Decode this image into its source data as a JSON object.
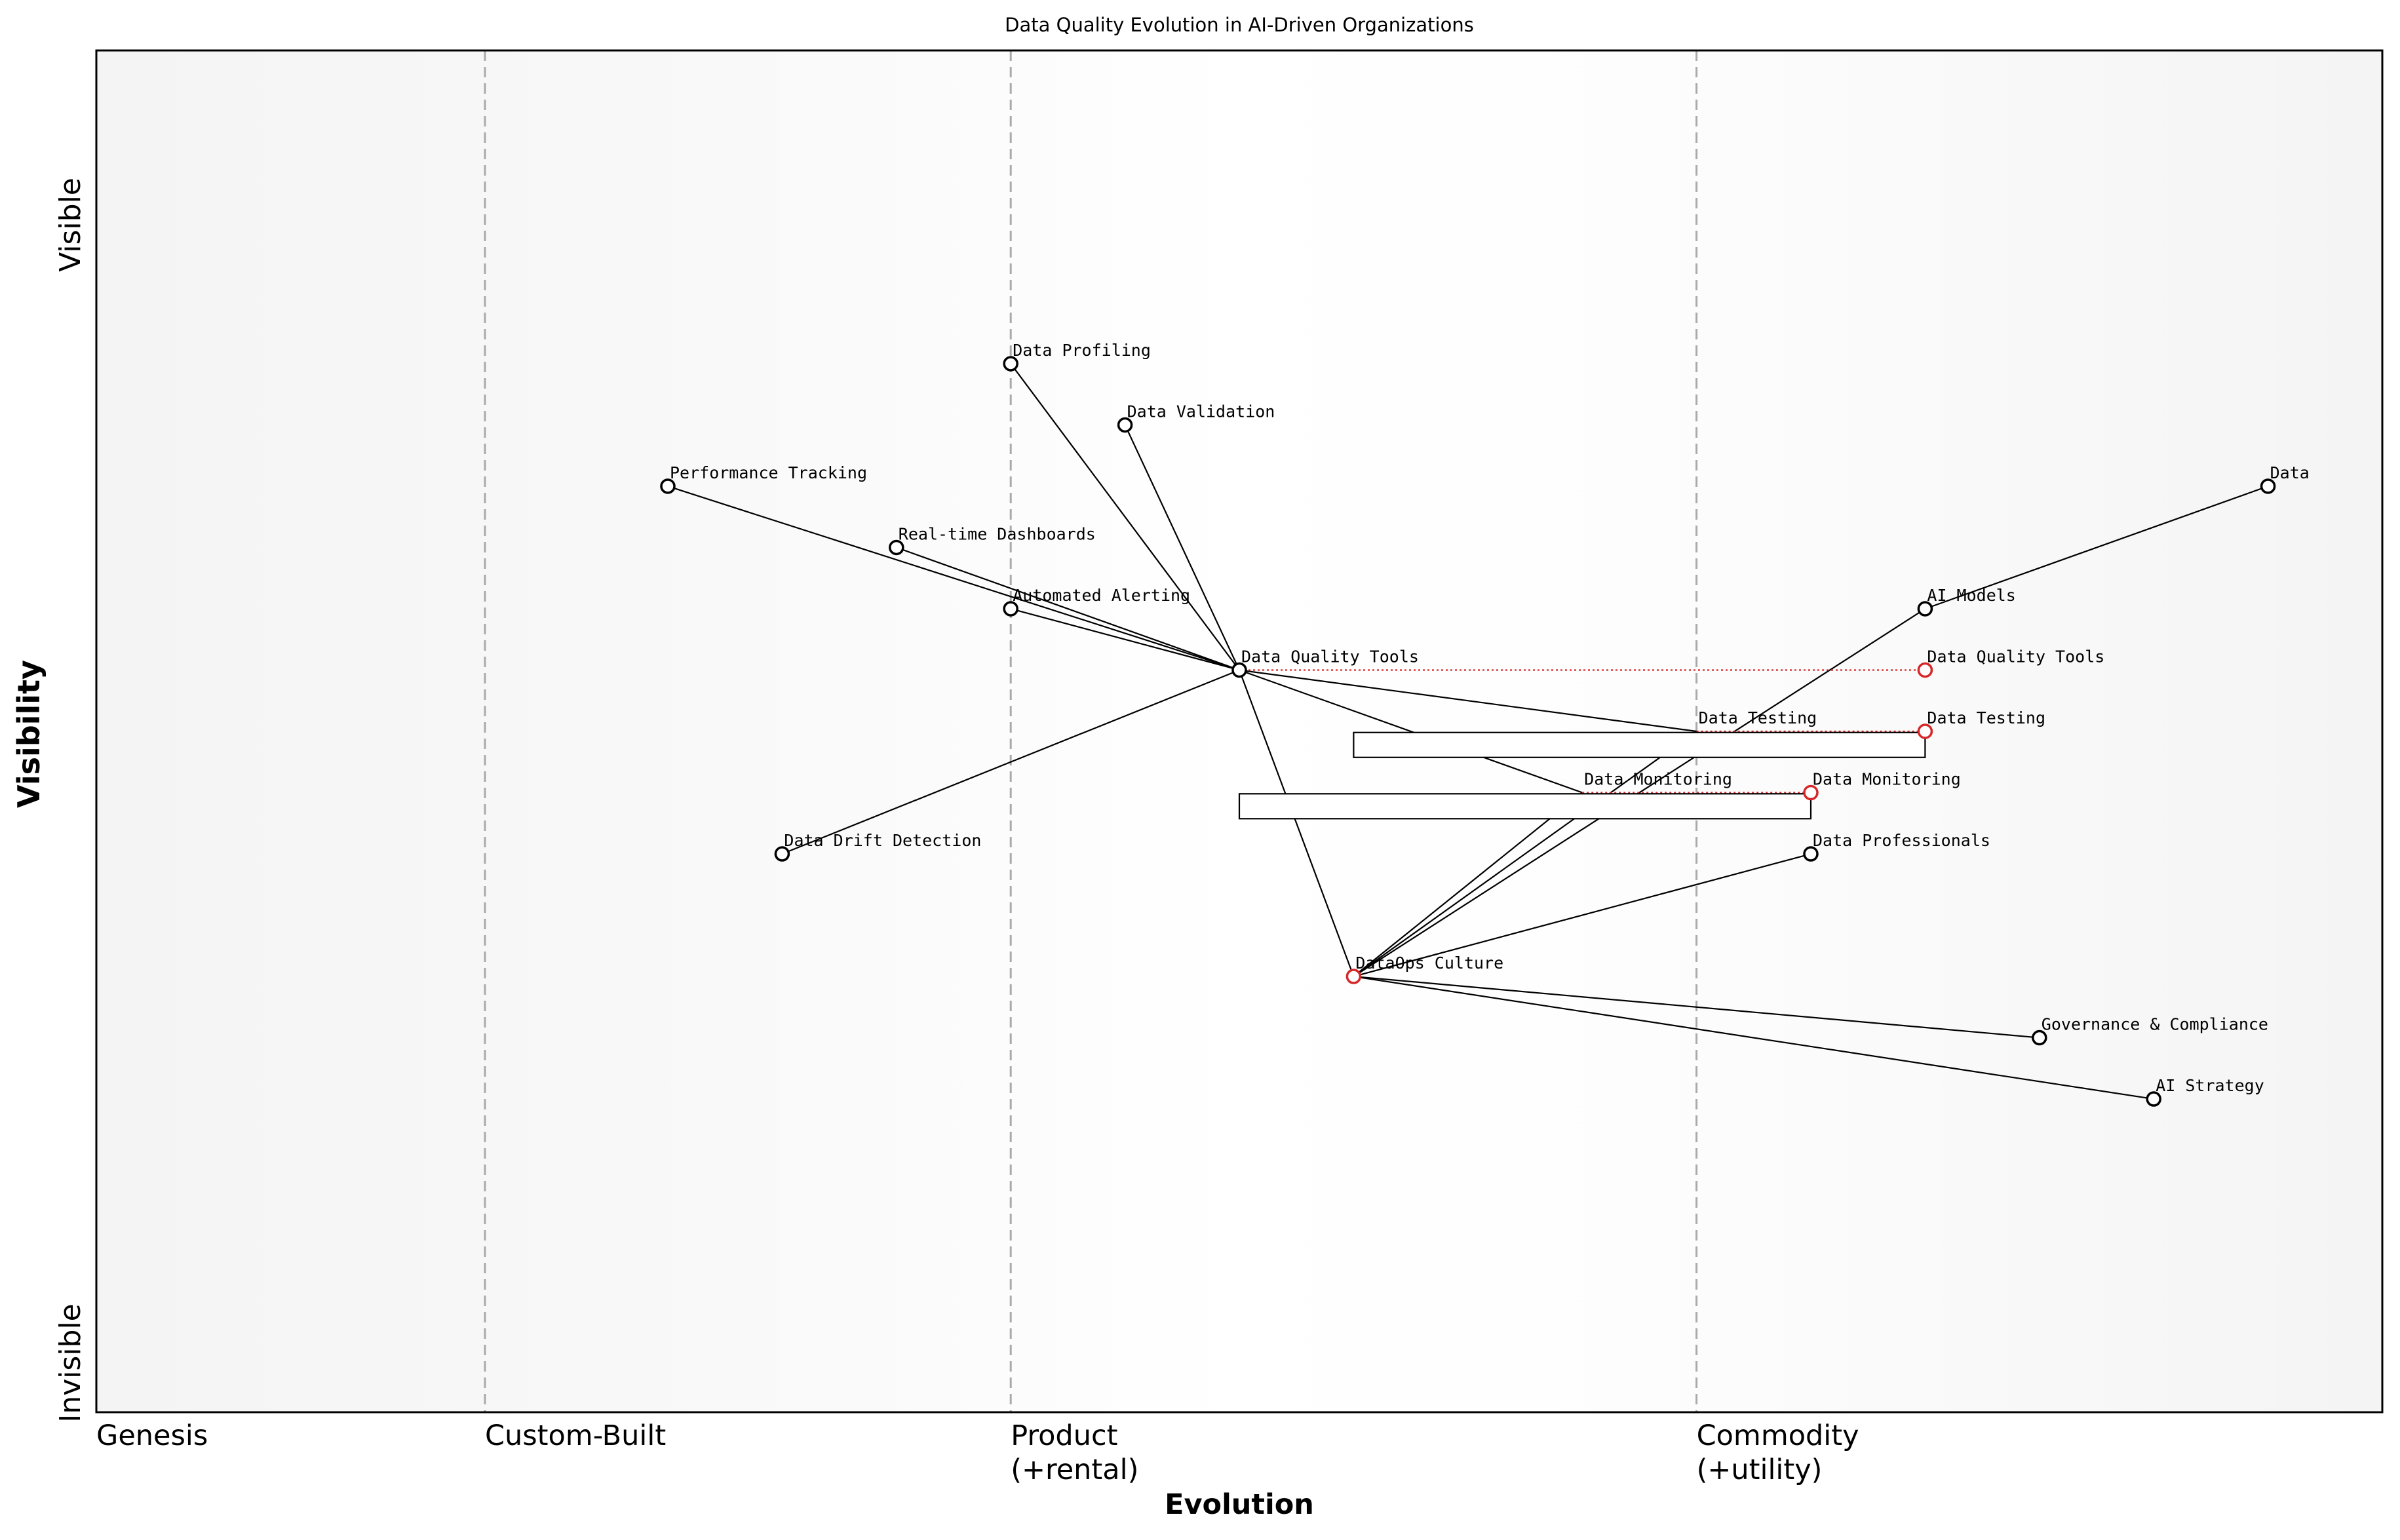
{
  "title": "Data Quality Evolution in AI-Driven Organizations",
  "axes": {
    "x_label": "Evolution",
    "y_label": "Visibility",
    "y_top": "Visible",
    "y_bottom": "Invisible",
    "stages": [
      {
        "id": "genesis",
        "lines": [
          "Genesis"
        ]
      },
      {
        "id": "custom",
        "lines": [
          "Custom-Built"
        ]
      },
      {
        "id": "product",
        "lines": [
          "Product",
          "(+rental)"
        ]
      },
      {
        "id": "commodity",
        "lines": [
          "Commodity",
          "(+utility)"
        ]
      }
    ]
  },
  "colors": {
    "node_stroke": "#000000",
    "evolved_stroke": "#d62728",
    "edge": "#000000",
    "evolve_line": "#d62728",
    "stage_divider": "#aaaaaa",
    "frame": "#000000"
  },
  "chart_data": {
    "type": "scatter",
    "x_range": [
      0,
      1
    ],
    "y_range": [
      0,
      1
    ],
    "stage_boundaries": [
      0.17,
      0.4,
      0.7
    ],
    "components": [
      {
        "id": "data",
        "label": "Data",
        "x": 0.95,
        "y": 0.68
      },
      {
        "id": "ai_models",
        "label": "AI Models",
        "x": 0.8,
        "y": 0.59
      },
      {
        "id": "dq_tools",
        "label": "Data Quality Tools",
        "x": 0.5,
        "y": 0.545
      },
      {
        "id": "data_profiling",
        "label": "Data Profiling",
        "x": 0.4,
        "y": 0.77
      },
      {
        "id": "data_validation",
        "label": "Data Validation",
        "x": 0.45,
        "y": 0.725
      },
      {
        "id": "perf_tracking",
        "label": "Performance Tracking",
        "x": 0.25,
        "y": 0.68
      },
      {
        "id": "realtime_dash",
        "label": "Real-time Dashboards",
        "x": 0.35,
        "y": 0.635
      },
      {
        "id": "auto_alerting",
        "label": "Automated Alerting",
        "x": 0.4,
        "y": 0.59
      },
      {
        "id": "data_testing",
        "label": "Data Testing",
        "x": 0.7,
        "y": 0.5
      },
      {
        "id": "data_monitoring",
        "label": "Data Monitoring",
        "x": 0.65,
        "y": 0.455
      },
      {
        "id": "drift_detection",
        "label": "Data Drift Detection",
        "x": 0.3,
        "y": 0.41
      },
      {
        "id": "data_professionals",
        "label": "Data Professionals",
        "x": 0.75,
        "y": 0.41
      },
      {
        "id": "dataops",
        "label": "DataOps Culture",
        "x": 0.55,
        "y": 0.32
      },
      {
        "id": "governance",
        "label": "Governance & Compliance",
        "x": 0.85,
        "y": 0.275
      },
      {
        "id": "ai_strategy",
        "label": "AI Strategy",
        "x": 0.9,
        "y": 0.23
      }
    ],
    "hidden_nodes": [
      "data_testing",
      "data_monitoring"
    ],
    "evolved_from_nodes": [
      "dataops"
    ],
    "evolved": [
      {
        "from": "dq_tools",
        "label": "Data Quality Tools",
        "x": 0.8,
        "y": 0.545
      },
      {
        "from": "data_testing",
        "label": "Data Testing",
        "x": 0.8,
        "y": 0.5
      },
      {
        "from": "data_monitoring",
        "label": "Data Monitoring",
        "x": 0.75,
        "y": 0.455
      }
    ],
    "links": [
      [
        "data",
        "ai_models"
      ],
      [
        "dq_tools",
        "data_profiling"
      ],
      [
        "dq_tools",
        "data_validation"
      ],
      [
        "dq_tools",
        "perf_tracking"
      ],
      [
        "dq_tools",
        "realtime_dash"
      ],
      [
        "dq_tools",
        "auto_alerting"
      ],
      [
        "dq_tools",
        "drift_detection"
      ],
      [
        "dq_tools",
        "data_testing"
      ],
      [
        "dq_tools",
        "data_monitoring"
      ],
      [
        "dq_tools",
        "dataops"
      ],
      [
        "dataops",
        "ai_models"
      ],
      [
        "dataops",
        "data_testing"
      ],
      [
        "dataops",
        "data_monitoring"
      ],
      [
        "dataops",
        "data_professionals"
      ],
      [
        "dataops",
        "governance"
      ],
      [
        "dataops",
        "ai_strategy"
      ]
    ],
    "inertia_boxes": [
      {
        "x0": 0.55,
        "x1": 0.8,
        "y": 0.49
      },
      {
        "x0": 0.5,
        "x1": 0.75,
        "y": 0.445
      }
    ]
  }
}
